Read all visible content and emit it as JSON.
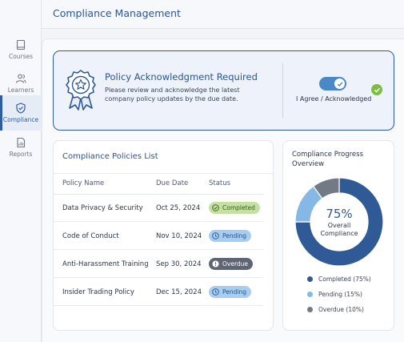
{
  "header": {
    "title": "Compliance Management"
  },
  "sidebar": {
    "items": [
      {
        "label": "Courses",
        "icon": "book-icon"
      },
      {
        "label": "Learners",
        "icon": "people-icon"
      },
      {
        "label": "Compliance",
        "icon": "shield-icon",
        "active": true
      },
      {
        "label": "Reports",
        "icon": "report-icon"
      }
    ]
  },
  "banner": {
    "title": "Policy Acknowledgment Required",
    "text": "Please review and acknowledge the latest company policy updates by the due date.",
    "agree_label": "I Agree / Acknowledged",
    "agree_on": true
  },
  "policies": {
    "title": "Compliance Policies List",
    "columns": [
      "Policy Name",
      "Due Date",
      "Status"
    ],
    "rows": [
      {
        "name": "Data Privacy & Security",
        "due": "Oct 25, 2024",
        "status": "Completed"
      },
      {
        "name": "Code of Conduct",
        "due": "Nov 10, 2024",
        "status": "Pending"
      },
      {
        "name": "Anti-Harassment Training",
        "due": "Sep 30, 2024",
        "status": "Overdue"
      },
      {
        "name": "Insider Trading Policy",
        "due": "Dec 15, 2024",
        "status": "Pending"
      }
    ]
  },
  "progress": {
    "title": "Compliance Progress Overview",
    "center_value": "75%",
    "center_label": "Overall Compliance",
    "segments": [
      {
        "label": "Completed (75%)",
        "value": 75,
        "color": "#2f5a96"
      },
      {
        "label": "Pending (15%)",
        "value": 15,
        "color": "#86b8e5"
      },
      {
        "label": "Overdue (10%)",
        "value": 10,
        "color": "#737a86"
      }
    ]
  },
  "colors": {
    "accent": "#2f5a96",
    "completed": "#c5e0a2",
    "pending": "#a9cdf0",
    "overdue": "#5f6673",
    "check": "#7dbd3f"
  }
}
